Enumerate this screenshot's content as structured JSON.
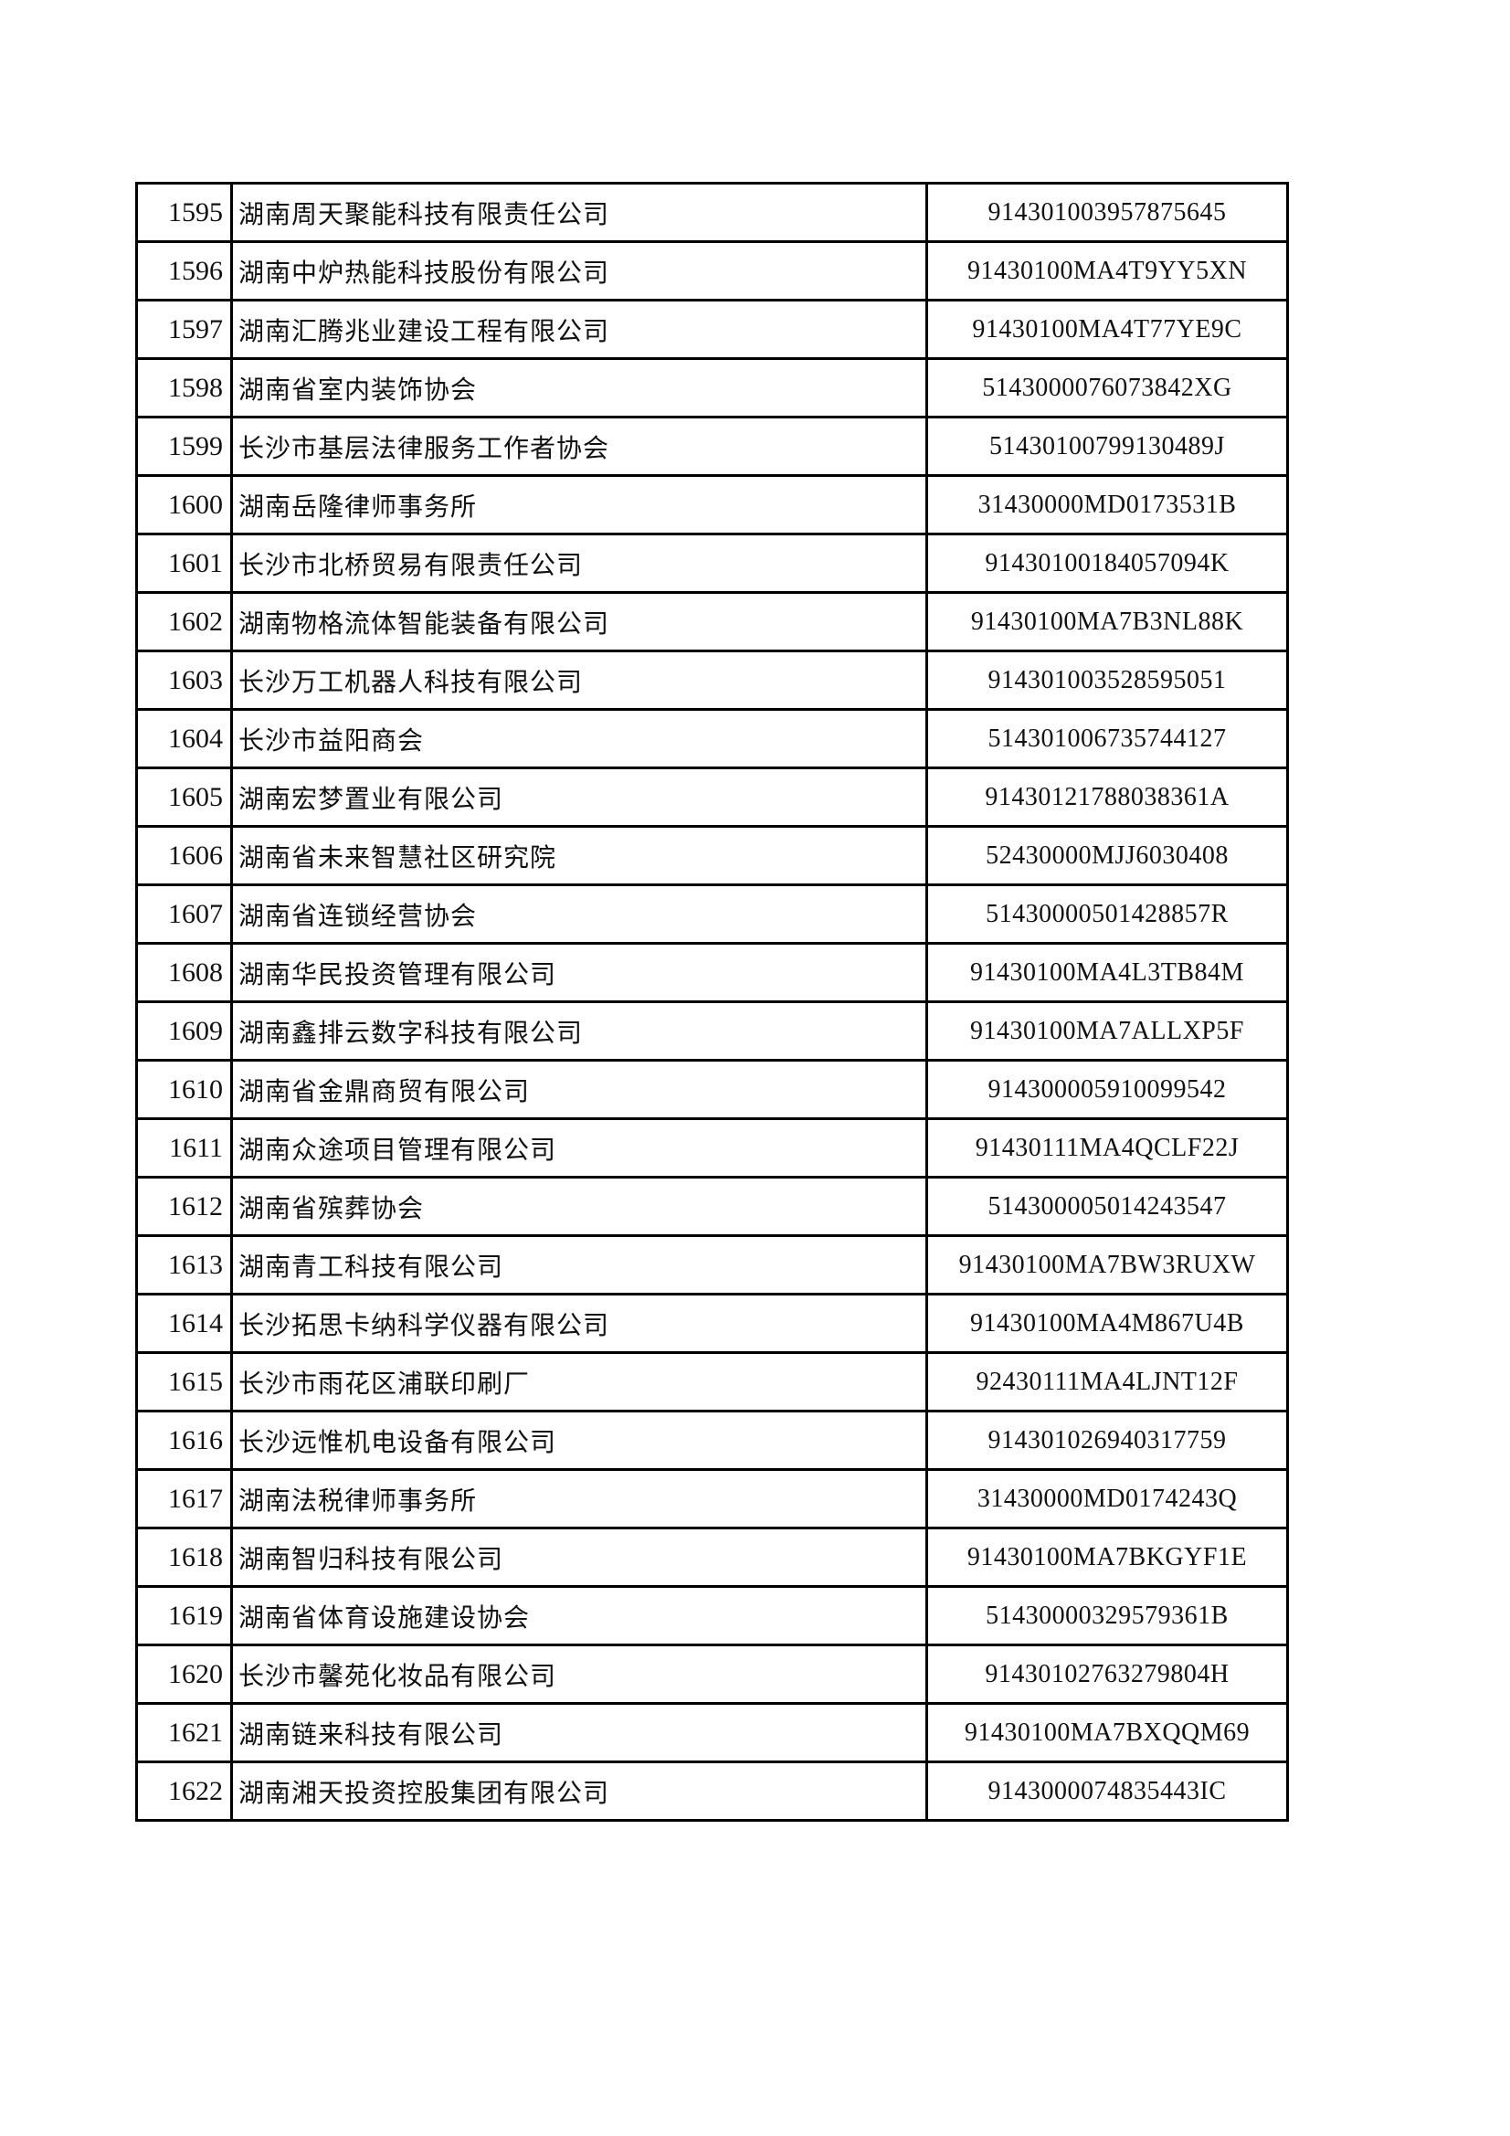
{
  "rows": [
    {
      "no": "1595",
      "name": "湖南周天聚能科技有限责任公司",
      "code": "914301003957875645"
    },
    {
      "no": "1596",
      "name": "湖南中炉热能科技股份有限公司",
      "code": "91430100MA4T9YY5XN"
    },
    {
      "no": "1597",
      "name": "湖南汇腾兆业建设工程有限公司",
      "code": "91430100MA4T77YE9C"
    },
    {
      "no": "1598",
      "name": "湖南省室内装饰协会",
      "code": "5143000076073842XG"
    },
    {
      "no": "1599",
      "name": "长沙市基层法律服务工作者协会",
      "code": "51430100799130489J"
    },
    {
      "no": "1600",
      "name": "湖南岳隆律师事务所",
      "code": "31430000MD0173531B"
    },
    {
      "no": "1601",
      "name": "长沙市北桥贸易有限责任公司",
      "code": "91430100184057094K"
    },
    {
      "no": "1602",
      "name": "湖南物格流体智能装备有限公司",
      "code": "91430100MA7B3NL88K"
    },
    {
      "no": "1603",
      "name": "长沙万工机器人科技有限公司",
      "code": "914301003528595051"
    },
    {
      "no": "1604",
      "name": "长沙市益阳商会",
      "code": "514301006735744127"
    },
    {
      "no": "1605",
      "name": "湖南宏梦置业有限公司",
      "code": "91430121788038361A"
    },
    {
      "no": "1606",
      "name": "湖南省未来智慧社区研究院",
      "code": "52430000MJJ6030408"
    },
    {
      "no": "1607",
      "name": "湖南省连锁经营协会",
      "code": "51430000501428857R"
    },
    {
      "no": "1608",
      "name": "湖南华民投资管理有限公司",
      "code": "91430100MA4L3TB84M"
    },
    {
      "no": "1609",
      "name": "湖南鑫排云数字科技有限公司",
      "code": "91430100MA7ALLXP5F"
    },
    {
      "no": "1610",
      "name": "湖南省金鼎商贸有限公司",
      "code": "914300005910099542"
    },
    {
      "no": "1611",
      "name": "湖南众途项目管理有限公司",
      "code": "91430111MA4QCLF22J"
    },
    {
      "no": "1612",
      "name": "湖南省殡葬协会",
      "code": "514300005014243547"
    },
    {
      "no": "1613",
      "name": "湖南青工科技有限公司",
      "code": "91430100MA7BW3RUXW"
    },
    {
      "no": "1614",
      "name": "长沙拓思卡纳科学仪器有限公司",
      "code": "91430100MA4M867U4B"
    },
    {
      "no": "1615",
      "name": "长沙市雨花区浦联印刷厂",
      "code": "92430111MA4LJNT12F"
    },
    {
      "no": "1616",
      "name": "长沙远惟机电设备有限公司",
      "code": "914301026940317759"
    },
    {
      "no": "1617",
      "name": "湖南法税律师事务所",
      "code": "31430000MD0174243Q"
    },
    {
      "no": "1618",
      "name": "湖南智归科技有限公司",
      "code": "91430100MA7BKGYF1E"
    },
    {
      "no": "1619",
      "name": "湖南省体育设施建设协会",
      "code": "51430000329579361B"
    },
    {
      "no": "1620",
      "name": "长沙市馨苑化妆品有限公司",
      "code": "91430102763279804H"
    },
    {
      "no": "1621",
      "name": "湖南链来科技有限公司",
      "code": "91430100MA7BXQQM69"
    },
    {
      "no": "1622",
      "name": "湖南湘天投资控股集团有限公司",
      "code": "9143000074835443IC"
    }
  ]
}
